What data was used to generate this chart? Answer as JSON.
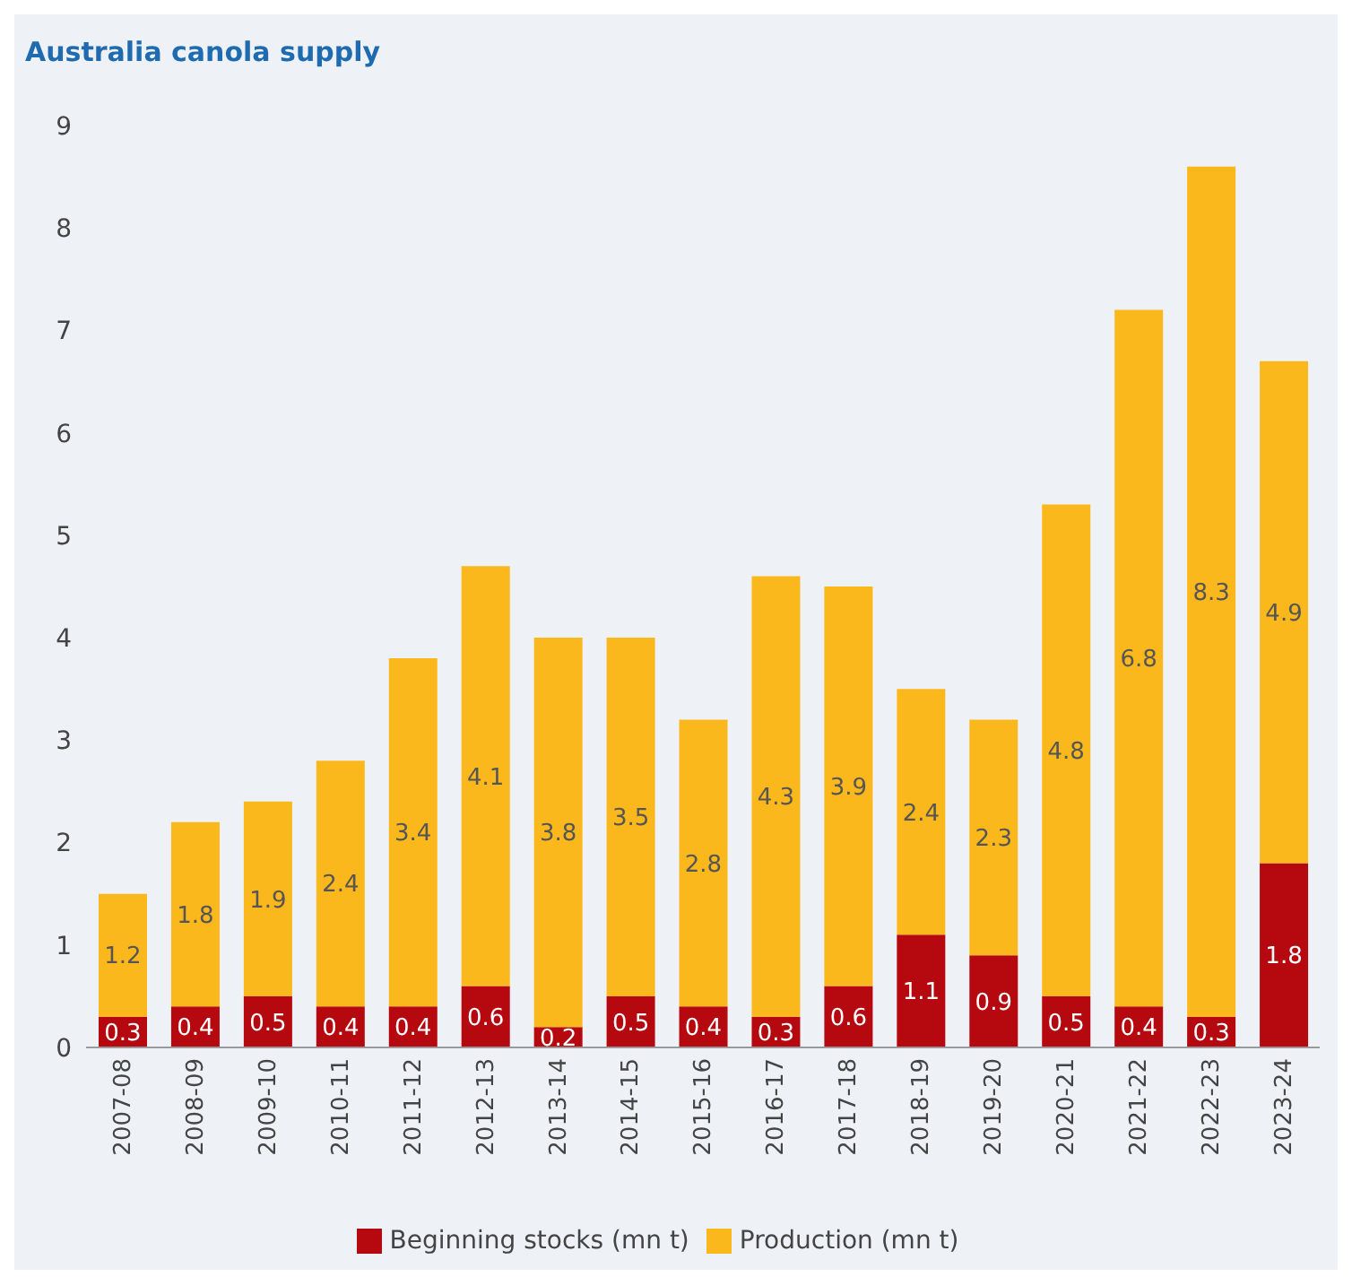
{
  "chart_data": {
    "type": "bar",
    "title": "Australia canola supply",
    "categories": [
      "2007-08",
      "2008-09",
      "2009-10",
      "2010-11",
      "2011-12",
      "2012-13",
      "2013-14",
      "2014-15",
      "2015-16",
      "2016-17",
      "2017-18",
      "2018-19",
      "2019-20",
      "2020-21",
      "2021-22",
      "2022-23",
      "2023-24"
    ],
    "series": [
      {
        "name": "Beginning stocks (mn t)",
        "color": "#b5090f",
        "values": [
          0.3,
          0.4,
          0.5,
          0.4,
          0.4,
          0.6,
          0.2,
          0.5,
          0.4,
          0.3,
          0.6,
          1.1,
          0.9,
          0.5,
          0.4,
          0.3,
          1.8
        ]
      },
      {
        "name": "Production (mn t)",
        "color": "#fbb81c",
        "values": [
          1.2,
          1.8,
          1.9,
          2.4,
          3.4,
          4.1,
          3.8,
          3.5,
          2.8,
          4.3,
          3.9,
          2.4,
          2.3,
          4.8,
          6.8,
          8.3,
          4.9
        ]
      }
    ],
    "stacked": true,
    "ylim": [
      0,
      9
    ],
    "yticks": [
      0,
      1,
      2,
      3,
      4,
      5,
      6,
      7,
      8,
      9
    ],
    "grid": false,
    "legend": "bottom",
    "data_labels": true
  }
}
